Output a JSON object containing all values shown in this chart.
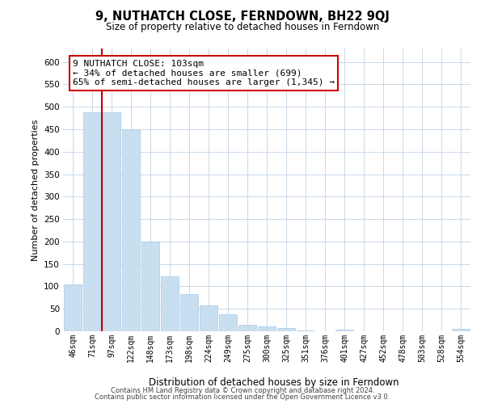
{
  "title": "9, NUTHATCH CLOSE, FERNDOWN, BH22 9QJ",
  "subtitle": "Size of property relative to detached houses in Ferndown",
  "xlabel": "Distribution of detached houses by size in Ferndown",
  "ylabel": "Number of detached properties",
  "bar_labels": [
    "46sqm",
    "71sqm",
    "97sqm",
    "122sqm",
    "148sqm",
    "173sqm",
    "198sqm",
    "224sqm",
    "249sqm",
    "275sqm",
    "300sqm",
    "325sqm",
    "351sqm",
    "376sqm",
    "401sqm",
    "427sqm",
    "452sqm",
    "478sqm",
    "503sqm",
    "528sqm",
    "554sqm"
  ],
  "bar_values": [
    105,
    487,
    487,
    450,
    200,
    122,
    82,
    58,
    38,
    15,
    10,
    8,
    2,
    0,
    3,
    0,
    0,
    0,
    0,
    0,
    5
  ],
  "bar_color": "#c8dff0",
  "bar_edge_color": "#a8c8e8",
  "vline_color": "#cc0000",
  "vline_x": 1.5,
  "annotation_text": "9 NUTHATCH CLOSE: 103sqm\n← 34% of detached houses are smaller (699)\n65% of semi-detached houses are larger (1,345) →",
  "annotation_box_color": "#ffffff",
  "annotation_box_edge": "#cc0000",
  "ylim": [
    0,
    630
  ],
  "yticks": [
    0,
    50,
    100,
    150,
    200,
    250,
    300,
    350,
    400,
    450,
    500,
    550,
    600
  ],
  "footer_line1": "Contains HM Land Registry data © Crown copyright and database right 2024.",
  "footer_line2": "Contains public sector information licensed under the Open Government Licence v3.0.",
  "background_color": "#ffffff",
  "grid_color": "#c8d8e8"
}
